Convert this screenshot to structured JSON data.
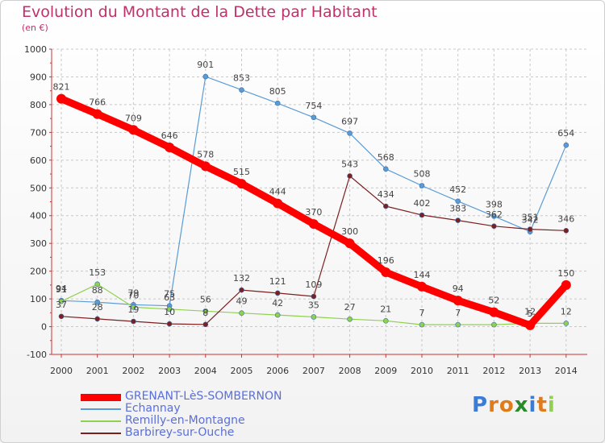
{
  "chart_data": {
    "type": "line",
    "title": "Evolution du Montant de la Dette par Habitant",
    "subtitle": "(en €)",
    "xlabel": "",
    "ylabel": "",
    "ylim": [
      -100,
      1000
    ],
    "yticks": [
      -100,
      0,
      100,
      200,
      300,
      400,
      500,
      600,
      700,
      800,
      900,
      1000
    ],
    "ytick_labels": [
      "-100",
      "0",
      "100",
      "200",
      "300",
      "400",
      "500",
      "600",
      "700",
      "800",
      "900",
      "1000"
    ],
    "categories": [
      "2000",
      "2001",
      "2002",
      "2003",
      "2004",
      "2005",
      "2006",
      "2007",
      "2008",
      "2009",
      "2010",
      "2011",
      "2012",
      "2013",
      "2014"
    ],
    "grid": true,
    "legend_position": "bottom",
    "series": [
      {
        "name": "GRENANT-LèS-SOMBERNON",
        "color": "#ff0000",
        "values": [
          821,
          766,
          709,
          646,
          578,
          515,
          444,
          370,
          300,
          196,
          144,
          94,
          52,
          5,
          150
        ]
      },
      {
        "name": "Echannay",
        "color": "#5b9bd5",
        "values": [
          94,
          88,
          79,
          75,
          901,
          853,
          805,
          754,
          697,
          568,
          508,
          452,
          398,
          342,
          654
        ]
      },
      {
        "name": "Remilly-en-Montagne",
        "color": "#8fd14f",
        "values": [
          91,
          153,
          70,
          63,
          56,
          49,
          42,
          35,
          27,
          21,
          7,
          7,
          7,
          12,
          12
        ]
      },
      {
        "name": "Barbirey-sur-Ouche",
        "color": "#7b1f1f",
        "values": [
          37,
          28,
          19,
          10,
          8,
          132,
          121,
          109,
          543,
          434,
          402,
          383,
          362,
          351,
          346
        ]
      }
    ]
  },
  "logo": {
    "letters": [
      "P",
      "r",
      "o",
      "x",
      "i",
      "t",
      "i"
    ],
    "colors": [
      "#3a7dd8",
      "#e07b1a",
      "#e07b1a",
      "#2a8a2a",
      "#3a7dd8",
      "#e07b1a",
      "#8fd14f"
    ]
  }
}
